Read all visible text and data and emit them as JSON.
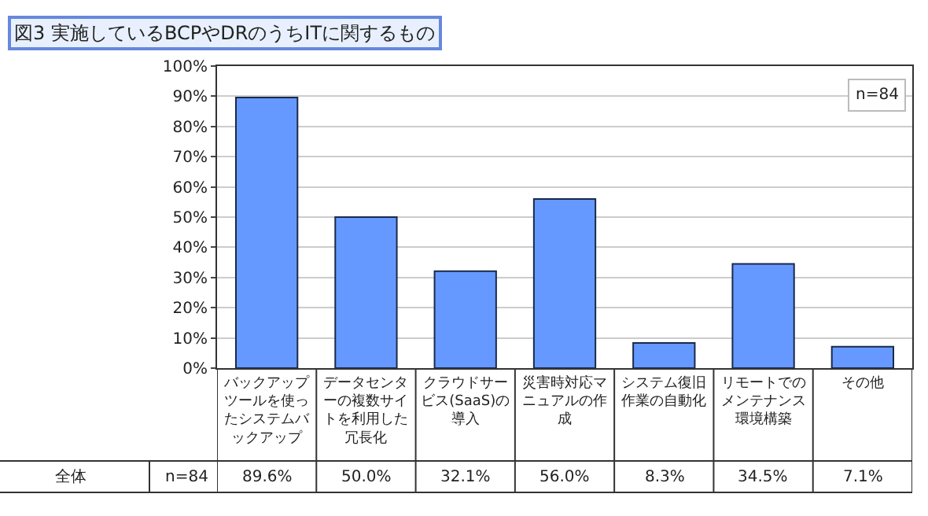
{
  "chart_data": {
    "type": "bar",
    "title": "図3 実施しているBCPやDRのうちITに関するもの",
    "categories": [
      "バックアップツールを使ったシステムバックアップ",
      "データセンターの複数サイトを利用した冗長化",
      "クラウドサービス(SaaS)の導入",
      "災害時対応マニュアルの作成",
      "システム復旧作業の自動化",
      "リモートでのメンテナンス環境構築",
      "その他"
    ],
    "values": [
      89.6,
      50.0,
      32.1,
      56.0,
      8.3,
      34.5,
      7.1
    ],
    "value_labels": [
      "89.6%",
      "50.0%",
      "32.1%",
      "56.0%",
      "8.3%",
      "34.5%",
      "7.1%"
    ],
    "color": "#6699ff",
    "ylim": [
      0,
      100
    ],
    "yticks": [
      {
        "value": 0,
        "label": "0%"
      },
      {
        "value": 10,
        "label": "10%"
      },
      {
        "value": 20,
        "label": "20%"
      },
      {
        "value": 30,
        "label": "30%"
      },
      {
        "value": 40,
        "label": "40%"
      },
      {
        "value": 50,
        "label": "50%"
      },
      {
        "value": 60,
        "label": "60%"
      },
      {
        "value": 70,
        "label": "70%"
      },
      {
        "value": 80,
        "label": "80%"
      },
      {
        "value": 90,
        "label": "90%"
      },
      {
        "value": 100,
        "label": "100%"
      }
    ],
    "grid": "y",
    "annotations": [
      "n=84",
      "全体",
      "n=84"
    ]
  }
}
